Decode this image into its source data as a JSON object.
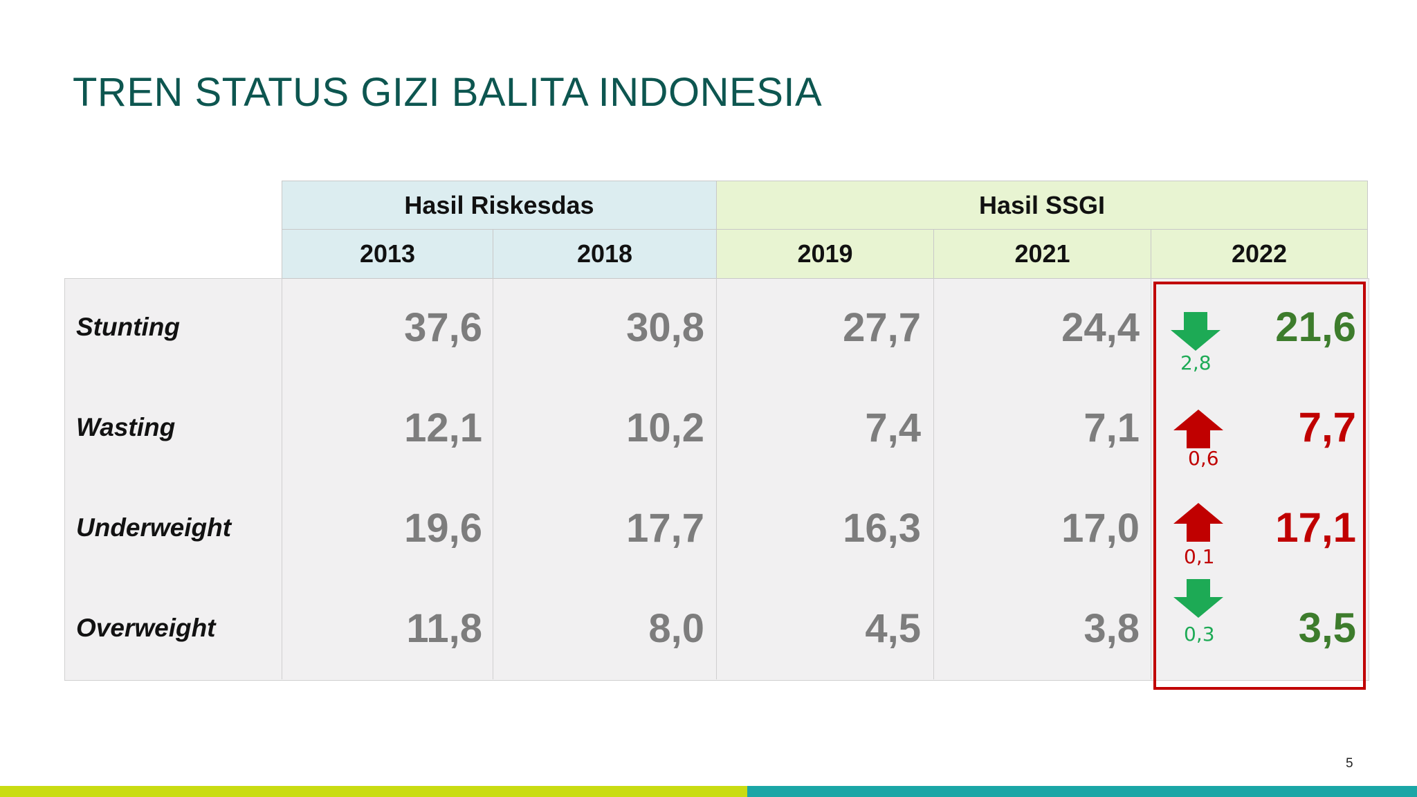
{
  "title": "TREN STATUS GIZI BALITA INDONESIA",
  "table": {
    "groups": [
      {
        "label": "Hasil Riskesdas",
        "color": "#dcedf0"
      },
      {
        "label": "Hasil SSGI",
        "color": "#e8f4d2"
      }
    ],
    "years": [
      "2013",
      "2018",
      "2019",
      "2021",
      "2022"
    ],
    "rows": [
      {
        "label": "Stunting",
        "values": [
          "37,6",
          "30,8",
          "27,7",
          "24,4",
          "21,6"
        ],
        "trend": "down",
        "delta": "2,8"
      },
      {
        "label": "Wasting",
        "values": [
          "12,1",
          "10,2",
          "7,4",
          "7,1",
          "7,7"
        ],
        "trend": "up",
        "delta": "0,6"
      },
      {
        "label": "Underweight",
        "values": [
          "19,6",
          "17,7",
          "16,3",
          "17,0",
          "17,1"
        ],
        "trend": "up",
        "delta": "0,1"
      },
      {
        "label": "Overweight",
        "values": [
          "11,8",
          "8,0",
          "4,5",
          "3,8",
          "3,5"
        ],
        "trend": "down",
        "delta": "0,3"
      }
    ]
  },
  "colors": {
    "title": "#0d5650",
    "decrease": "#3d7c2c",
    "increase": "#c00000",
    "down_arrow": "#1daa55",
    "highlight_border": "#c00000",
    "bar_left": "#c9dc12",
    "bar_right": "#1ba6a6"
  },
  "page_number": "5"
}
